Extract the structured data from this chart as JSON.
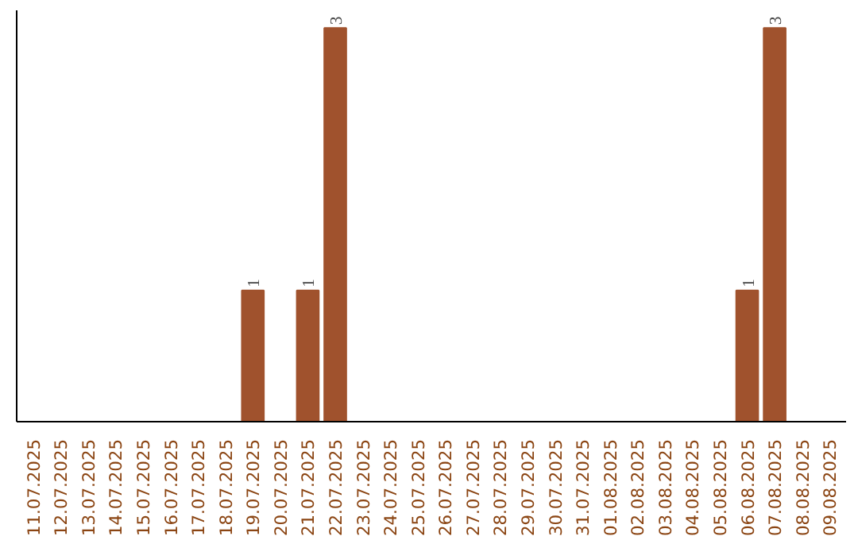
{
  "chart_data": {
    "type": "bar",
    "categories": [
      "11.07.2025",
      "12.07.2025",
      "13.07.2025",
      "14.07.2025",
      "15.07.2025",
      "16.07.2025",
      "17.07.2025",
      "18.07.2025",
      "19.07.2025",
      "20.07.2025",
      "21.07.2025",
      "22.07.2025",
      "23.07.2025",
      "24.07.2025",
      "25.07.2025",
      "26.07.2025",
      "27.07.2025",
      "28.07.2025",
      "29.07.2025",
      "30.07.2025",
      "31.07.2025",
      "01.08.2025",
      "02.08.2025",
      "03.08.2025",
      "04.08.2025",
      "05.08.2025",
      "06.08.2025",
      "07.08.2025",
      "08.08.2025",
      "09.08.2025"
    ],
    "values": [
      0,
      0,
      0,
      0,
      0,
      0,
      0,
      0,
      1,
      0,
      1,
      3,
      0,
      0,
      0,
      0,
      0,
      0,
      0,
      0,
      0,
      0,
      0,
      0,
      0,
      0,
      1,
      3,
      0,
      0
    ],
    "value_labels": [
      null,
      null,
      null,
      null,
      null,
      null,
      null,
      null,
      "1",
      null,
      "1",
      "3",
      null,
      null,
      null,
      null,
      null,
      null,
      null,
      null,
      null,
      null,
      null,
      null,
      null,
      null,
      "1",
      "3",
      null,
      null
    ],
    "color": "#a0522d",
    "tick_labels": "x",
    "grid": false
  }
}
